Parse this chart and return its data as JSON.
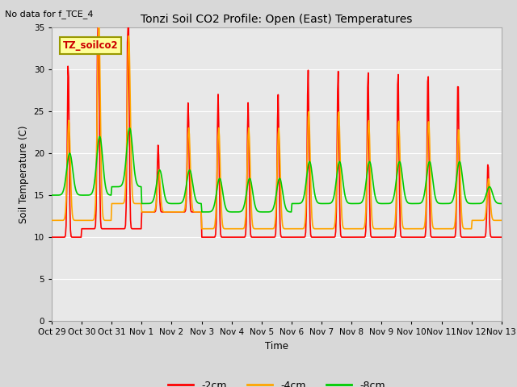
{
  "title": "Tonzi Soil CO2 Profile: Open (East) Temperatures",
  "subtitle": "No data for f_TCE_4",
  "ylabel": "Soil Temperature (C)",
  "xlabel": "Time",
  "ylim": [
    0,
    35
  ],
  "yticks": [
    0,
    5,
    10,
    15,
    20,
    25,
    30,
    35
  ],
  "fig_bg": "#d8d8d8",
  "plot_bg": "#e8e8e8",
  "inset_label": "TZ_soilco2",
  "colors": {
    "red": "#ff0000",
    "orange": "#ffa500",
    "green": "#00cc00"
  },
  "legend_labels": [
    "-2cm",
    "-4cm",
    "-8cm"
  ],
  "xtick_labels": [
    "Oct 29",
    "Oct 30",
    "Oct 31",
    "Nov 1",
    "Nov 2",
    "Nov 3",
    "Nov 4",
    "Nov 5",
    "Nov 6",
    "Nov 7",
    "Nov 8",
    "Nov 9",
    "Nov 10",
    "Nov 11",
    "Nov 12",
    "Nov 13"
  ],
  "line_width": 1.2
}
